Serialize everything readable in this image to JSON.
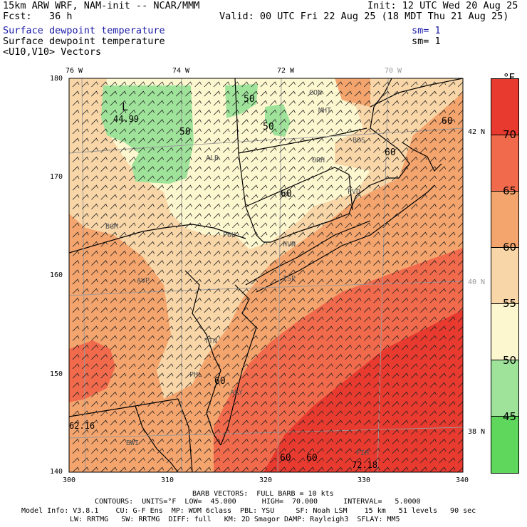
{
  "header": {
    "line1_left": "15km ARW WRF, NAM-init -- NCAR/MMM",
    "line1_right": "Init: 12 UTC Wed 20 Aug 25",
    "line2_left": "Fcst:   36 h",
    "line2_right": "Valid: 00 UTC Fri 22 Aug 25 (18 MDT Thu 21 Aug 25)",
    "field1_name": "Surface dewpoint temperature",
    "field1_sm": "sm= 1",
    "field2_name": "Surface dewpoint temperature",
    "field2_sm": "sm= 1",
    "field3_name": "<U10,V10> Vectors"
  },
  "map": {
    "lon_labels": [
      "76 W",
      "74 W",
      "72 W",
      "70 W"
    ],
    "lat_labels": [
      "42 N",
      "40 N",
      "38 N"
    ],
    "y_ticks": [
      "180",
      "170",
      "160",
      "150",
      "140"
    ],
    "x_ticks": [
      "300",
      "310",
      "320",
      "330",
      "340"
    ],
    "stations": [
      "CON",
      "MHT",
      "BOS",
      "ORH",
      "ALB",
      "BDL",
      "PVD",
      "BGM",
      "POU",
      "HVN",
      "AVP",
      "ISP",
      "TTN",
      "PHL",
      "ACY",
      "BWI",
      "FIH"
    ],
    "contour_labels": [
      "50",
      "50",
      "50",
      "60",
      "60",
      "60",
      "60",
      "60",
      "60"
    ],
    "low_marker": "L",
    "low_value": "44.99",
    "extrema_values": [
      "62.16",
      "72.18"
    ]
  },
  "colorbar": {
    "unit": "°F",
    "labels": [
      "70",
      "65",
      "60",
      "55",
      "50",
      "45"
    ],
    "colors": [
      "#e83a2f",
      "#f26a4c",
      "#f4a46d",
      "#f8d6a8",
      "#fdf7cf",
      "#9fe39b",
      "#5fd65c"
    ]
  },
  "footer": {
    "barb": "BARB VECTORS:  FULL BARB = 10 kts",
    "contours": "CONTOURS:  UNITS=°F  LOW=  45.000      HIGH=  70.000      INTERVAL=   5.0000",
    "model1": "Model Info: V3.8.1    CU: G-F Ens  MP: WDM 6class  PBL: YSU     SF: Noah LSM    15 km   51 levels   90 sec",
    "model2": "LW: RRTMG   SW: RRTMG  DIFF: full   KM: 2D Smagor DAMP: Rayleigh3  SFLAY: MM5"
  }
}
